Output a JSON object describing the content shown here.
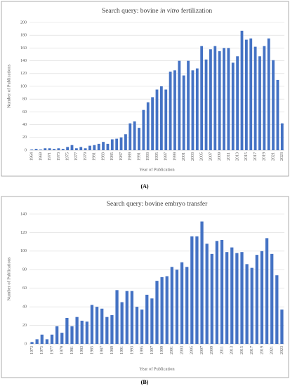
{
  "chart_data": [
    {
      "type": "bar",
      "title_parts": [
        "Search query: bovine ",
        "in vitro",
        " fertilization"
      ],
      "panel_label": "(A)",
      "x_label": "Year of Publication",
      "y_label": "Number of Publications",
      "color": "#4472c4",
      "categories": [
        "1964",
        null,
        "1969",
        null,
        "1971",
        null,
        "1973",
        null,
        "1975",
        null,
        "1977",
        null,
        "1979",
        null,
        "1981",
        null,
        "1983",
        null,
        "1985",
        null,
        "1987",
        null,
        "1989",
        null,
        "1991",
        null,
        "1993",
        null,
        "1995",
        null,
        "1997",
        null,
        "1999",
        null,
        "2001",
        null,
        "2003",
        null,
        "2005",
        null,
        "2007",
        null,
        "2009",
        null,
        "2011",
        null,
        "2013",
        null,
        "2015",
        null,
        "2017",
        null,
        "2019",
        null,
        "2021",
        null,
        "2023"
      ],
      "values": [
        1,
        2,
        1,
        3,
        3,
        2,
        3,
        2,
        5,
        8,
        3,
        5,
        3,
        7,
        8,
        10,
        13,
        10,
        17,
        18,
        20,
        25,
        42,
        45,
        35,
        63,
        75,
        83,
        95,
        100,
        95,
        123,
        125,
        140,
        117,
        140,
        125,
        128,
        163,
        142,
        158,
        163,
        155,
        160,
        160,
        137,
        147,
        187,
        173,
        175,
        162,
        147,
        163,
        175,
        141,
        110,
        42
      ],
      "ylim": [
        0,
        200
      ],
      "yticks": [
        0,
        20,
        40,
        60,
        80,
        100,
        120,
        140,
        160,
        180,
        200
      ],
      "grid": true
    },
    {
      "type": "bar",
      "title_parts": [
        "Search query: bovine embryo transfer"
      ],
      "panel_label": "(B)",
      "x_label": "Year of Publication",
      "y_label": "Number of Publications",
      "color": "#4472c4",
      "categories": [
        "1973",
        null,
        "1975",
        null,
        "1977",
        null,
        "1979",
        null,
        "1981",
        null,
        "1983",
        null,
        "1985",
        null,
        "1987",
        null,
        "1989",
        null,
        "1991",
        null,
        "1993",
        null,
        "1995",
        null,
        "1997",
        null,
        "1999",
        null,
        "2001",
        null,
        "2003",
        null,
        "2005",
        null,
        "2007",
        null,
        "2009",
        null,
        "2011",
        null,
        "2013",
        null,
        "2015",
        null,
        "2017",
        null,
        "2019",
        null,
        "2021",
        null,
        "2023"
      ],
      "values": [
        2,
        5,
        10,
        5,
        10,
        19,
        12,
        28,
        19,
        29,
        25,
        24,
        42,
        40,
        38,
        29,
        31,
        58,
        45,
        57,
        57,
        40,
        37,
        53,
        49,
        68,
        72,
        73,
        83,
        80,
        88,
        83,
        116,
        116,
        132,
        108,
        97,
        111,
        112,
        99,
        104,
        98,
        99,
        86,
        82,
        96,
        100,
        114,
        97,
        74,
        37
      ],
      "ylim": [
        0,
        140
      ],
      "yticks": [
        0,
        20,
        40,
        60,
        80,
        100,
        120,
        140
      ],
      "grid": true
    }
  ]
}
